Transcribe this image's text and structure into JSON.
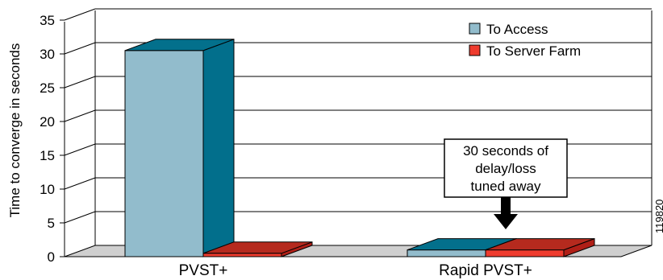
{
  "chart_data": {
    "type": "bar",
    "ylabel": "Time to converge in seconds",
    "ylim": [
      0,
      35
    ],
    "yticks": [
      0,
      5,
      10,
      15,
      20,
      25,
      30,
      35
    ],
    "categories": [
      "PVST+",
      "Rapid PVST+"
    ],
    "series": [
      {
        "name": "To Access",
        "values": [
          30.5,
          1
        ],
        "color": "#92bccc",
        "side_color": "#026f8c",
        "top_color": "#03708c"
      },
      {
        "name": "To  Server Farm",
        "values": [
          0.5,
          1
        ],
        "color": "#ee3b2e",
        "side_color": "#b01f17",
        "top_color": "#b52a1e"
      }
    ],
    "annotation": {
      "lines": [
        "30 seconds of",
        "delay/loss",
        "tuned away"
      ]
    },
    "legend_position": "top-right",
    "grid": true
  },
  "figure_id": "119820"
}
